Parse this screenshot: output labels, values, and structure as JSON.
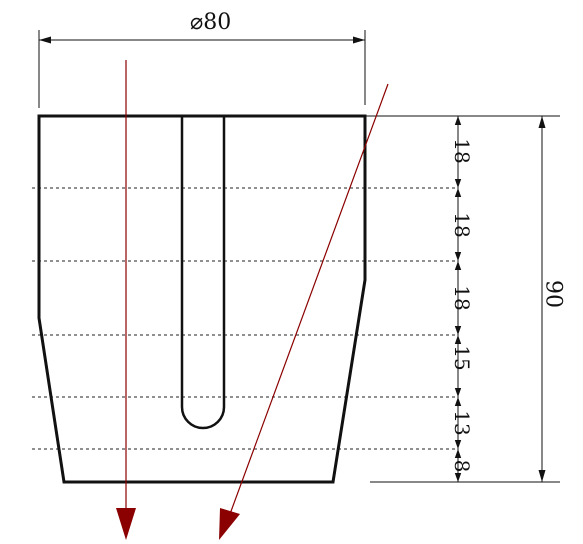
{
  "drawing": {
    "diameter_label": "⌀80",
    "total_height_label": "90",
    "segment_labels": [
      "18",
      "18",
      "18",
      "15",
      "13",
      "8"
    ]
  },
  "colors": {
    "outline": "#111111",
    "arrow": "#8b0000",
    "background": "#ffffff"
  }
}
